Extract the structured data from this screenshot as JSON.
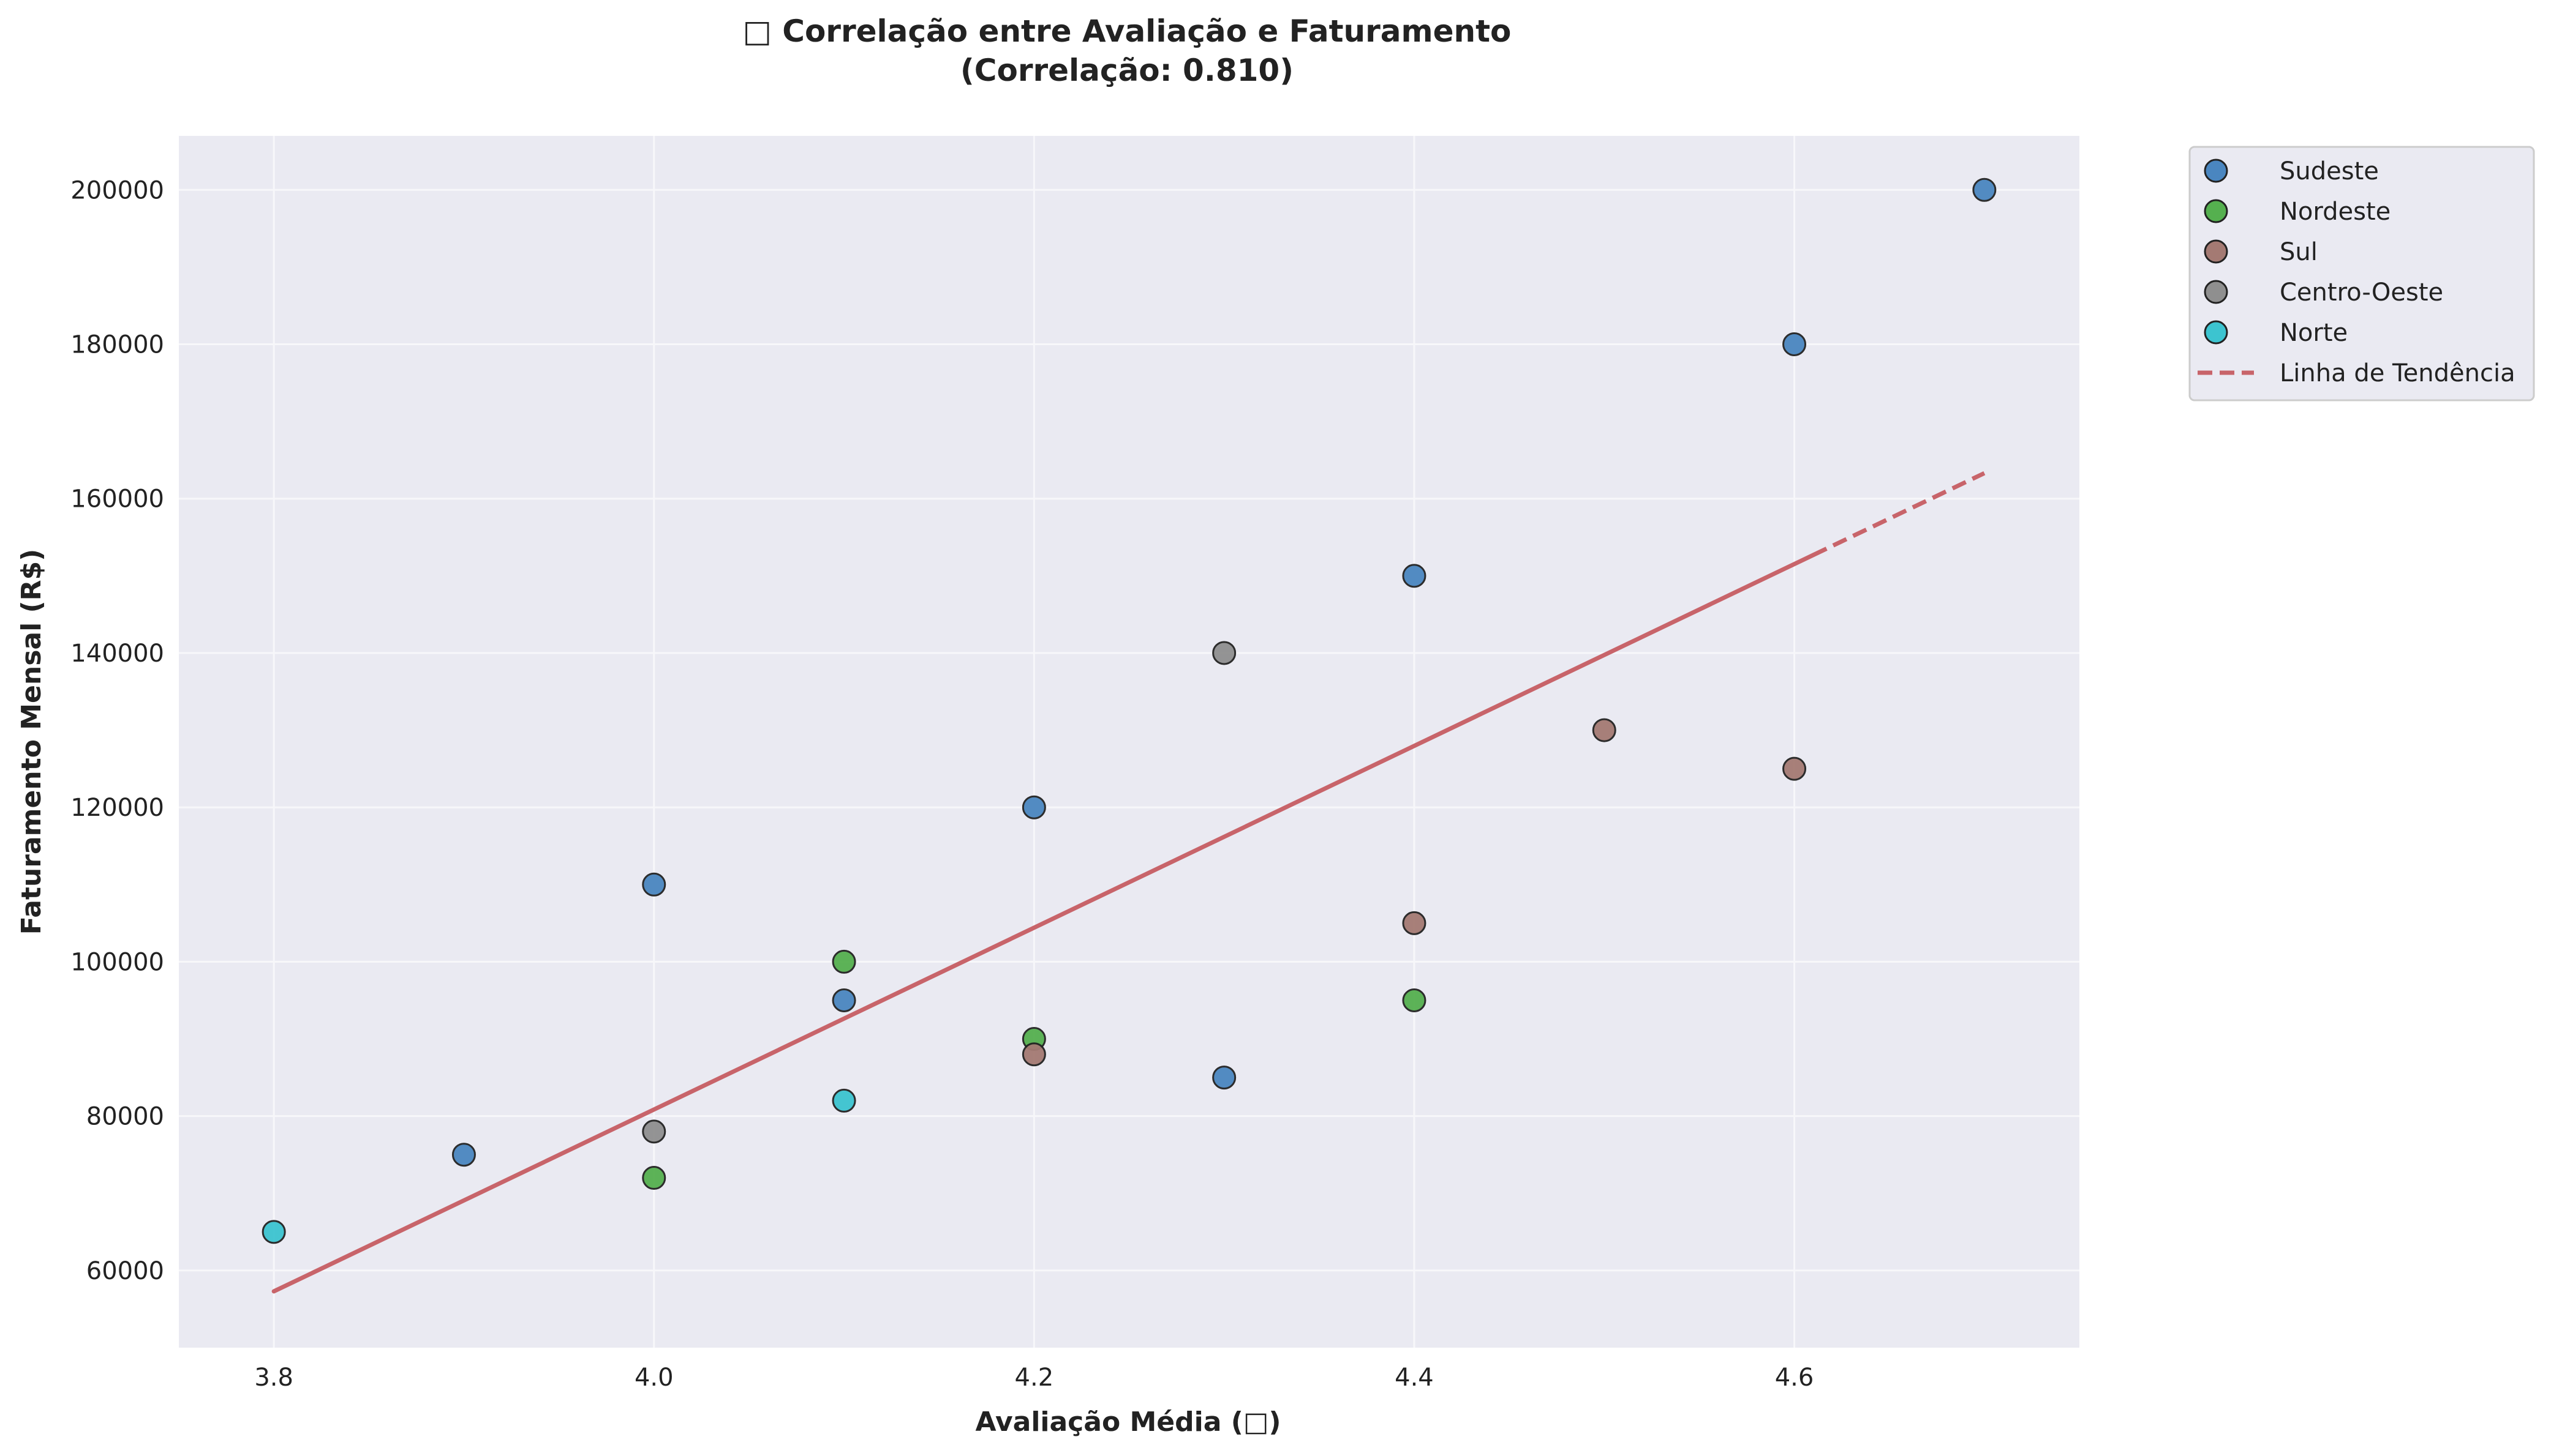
{
  "chart_data": {
    "type": "scatter",
    "title": "□ Correlação entre Avaliação e Faturamento",
    "subtitle": "(Correlação: 0.810)",
    "xlabel": "Avaliação Média (□)",
    "ylabel": "Faturamento Mensal (R$)",
    "xlim": [
      3.75,
      4.75
    ],
    "ylim": [
      50000,
      207000
    ],
    "x_ticks": [
      3.8,
      4.0,
      4.2,
      4.4,
      4.6
    ],
    "x_tick_labels": [
      "3.8",
      "4.0",
      "4.2",
      "4.4",
      "4.6"
    ],
    "y_ticks": [
      60000,
      80000,
      100000,
      120000,
      140000,
      160000,
      180000,
      200000
    ],
    "y_tick_labels": [
      "60000",
      "80000",
      "100000",
      "120000",
      "140000",
      "160000",
      "180000",
      "200000"
    ],
    "grid": true,
    "legend_position": "outside-top-right",
    "series": [
      {
        "name": "Sudeste",
        "color": "#4a86c0",
        "points": [
          [
            3.9,
            75000
          ],
          [
            4.0,
            110000
          ],
          [
            4.1,
            95000
          ],
          [
            4.2,
            120000
          ],
          [
            4.3,
            85000
          ],
          [
            4.4,
            150000
          ],
          [
            4.6,
            180000
          ],
          [
            4.7,
            200000
          ]
        ]
      },
      {
        "name": "Nordeste",
        "color": "#55b04f",
        "points": [
          [
            4.0,
            72000
          ],
          [
            4.1,
            100000
          ],
          [
            4.2,
            90000
          ],
          [
            4.4,
            95000
          ]
        ]
      },
      {
        "name": "Sul",
        "color": "#a47a73",
        "points": [
          [
            4.2,
            88000
          ],
          [
            4.4,
            105000
          ],
          [
            4.5,
            130000
          ],
          [
            4.6,
            125000
          ]
        ]
      },
      {
        "name": "Centro-Oeste",
        "color": "#8f8f8f",
        "points": [
          [
            4.0,
            78000
          ],
          [
            4.3,
            140000
          ]
        ]
      },
      {
        "name": "Norte",
        "color": "#3cc4d0",
        "points": [
          [
            3.8,
            65000
          ],
          [
            4.1,
            82000
          ]
        ]
      }
    ],
    "trendline": {
      "name": "Linha de Tendência",
      "color": "#c8646a",
      "style": "dashed",
      "x": [
        3.8,
        4.7
      ],
      "y": [
        57300,
        163300
      ]
    }
  }
}
